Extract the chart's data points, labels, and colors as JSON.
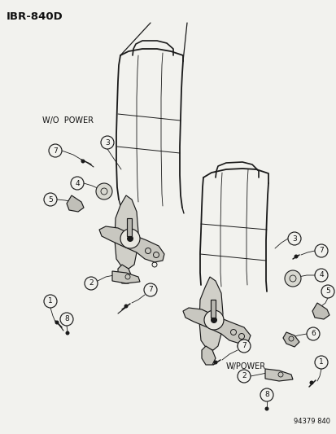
{
  "diagram_id": "IBR-840D",
  "catalog_number": "94379 840",
  "bg_color": "#f2f2ee",
  "line_color": "#1a1a1a",
  "text_color": "#111111",
  "label_wo_power": "W/O  POWER",
  "label_w_power": "W/POWER",
  "figsize": [
    4.14,
    5.33
  ],
  "dpi": 100
}
